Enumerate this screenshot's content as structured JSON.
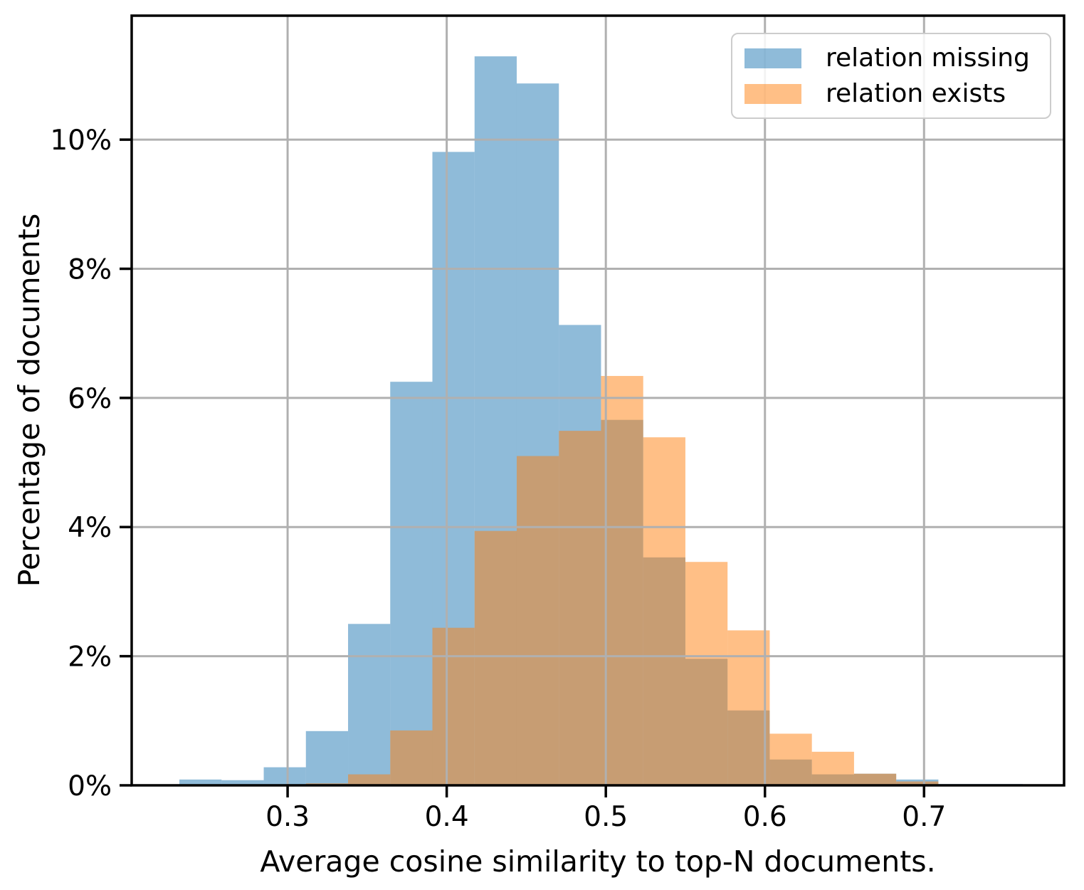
{
  "figure": {
    "background": "#ffffff"
  },
  "chart_data": {
    "type": "histogram",
    "title": "",
    "xlabel": "Average cosine similarity to top-N documents.",
    "ylabel": "Percentage of documents",
    "unit": "%",
    "grid": true,
    "legend_position": "upper right",
    "xlim": [
      0.202,
      0.788
    ],
    "ylim": [
      0,
      11.92
    ],
    "x_ticks": [
      0.3,
      0.4,
      0.5,
      0.6,
      0.7
    ],
    "x_tick_labels": [
      "0.3",
      "0.4",
      "0.5",
      "0.6",
      "0.7"
    ],
    "y_ticks": [
      0,
      2,
      4,
      6,
      8,
      10
    ],
    "y_tick_labels": [
      "0%",
      "2%",
      "4%",
      "6%",
      "8%",
      "10%"
    ],
    "bin_edges": [
      0.232,
      0.2585,
      0.285,
      0.3115,
      0.338,
      0.3645,
      0.391,
      0.4175,
      0.444,
      0.4705,
      0.497,
      0.5235,
      0.55,
      0.5765,
      0.603,
      0.6295,
      0.656,
      0.6825,
      0.709,
      0.7355,
      0.762
    ],
    "series": [
      {
        "name": "relation missing",
        "color": "#1f77b4",
        "alpha": 0.5,
        "values_pct": [
          0.09,
          0.08,
          0.28,
          0.84,
          2.5,
          6.25,
          9.81,
          11.29,
          10.87,
          7.13,
          5.66,
          3.53,
          1.96,
          1.16,
          0.4,
          0.17,
          0.18,
          0.09,
          0.02,
          0.02
        ]
      },
      {
        "name": "relation exists",
        "color": "#ff7f0e",
        "alpha": 0.5,
        "values_pct": [
          0,
          0,
          0,
          0.03,
          0.17,
          0.85,
          2.44,
          3.94,
          5.1,
          5.49,
          6.34,
          5.39,
          3.46,
          2.4,
          0.8,
          0.52,
          0.18,
          0.06,
          0,
          0
        ]
      }
    ]
  },
  "style": {
    "grid_color": "#b0b0b0",
    "spine_color": "#000000",
    "tick_color": "#000000",
    "legend_border": "#cccccc"
  }
}
